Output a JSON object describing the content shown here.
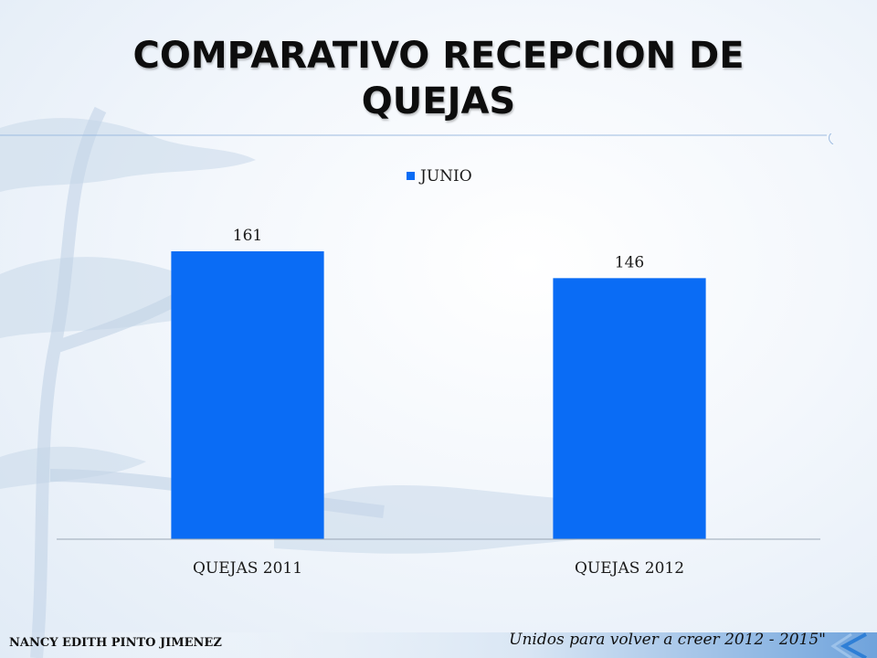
{
  "slide": {
    "title_line1": "COMPARATIVO RECEPCION DE",
    "title_line2": "QUEJAS",
    "footer_left": "NANCY EDITH PINTO JIMENEZ",
    "footer_right": "Unidos para volver a creer 2012 - 2015\""
  },
  "colors": {
    "bar": "#0a6cf5",
    "accent": "#2f7fd6"
  },
  "chart_data": {
    "type": "bar",
    "categories": [
      "QUEJAS 2011",
      "QUEJAS 2012"
    ],
    "series": [
      {
        "name": "JUNIO",
        "values": [
          161,
          146
        ]
      }
    ],
    "data_labels": [
      "161",
      "146"
    ],
    "ylim": [
      0,
      161
    ],
    "grid": false,
    "legend": "top"
  }
}
